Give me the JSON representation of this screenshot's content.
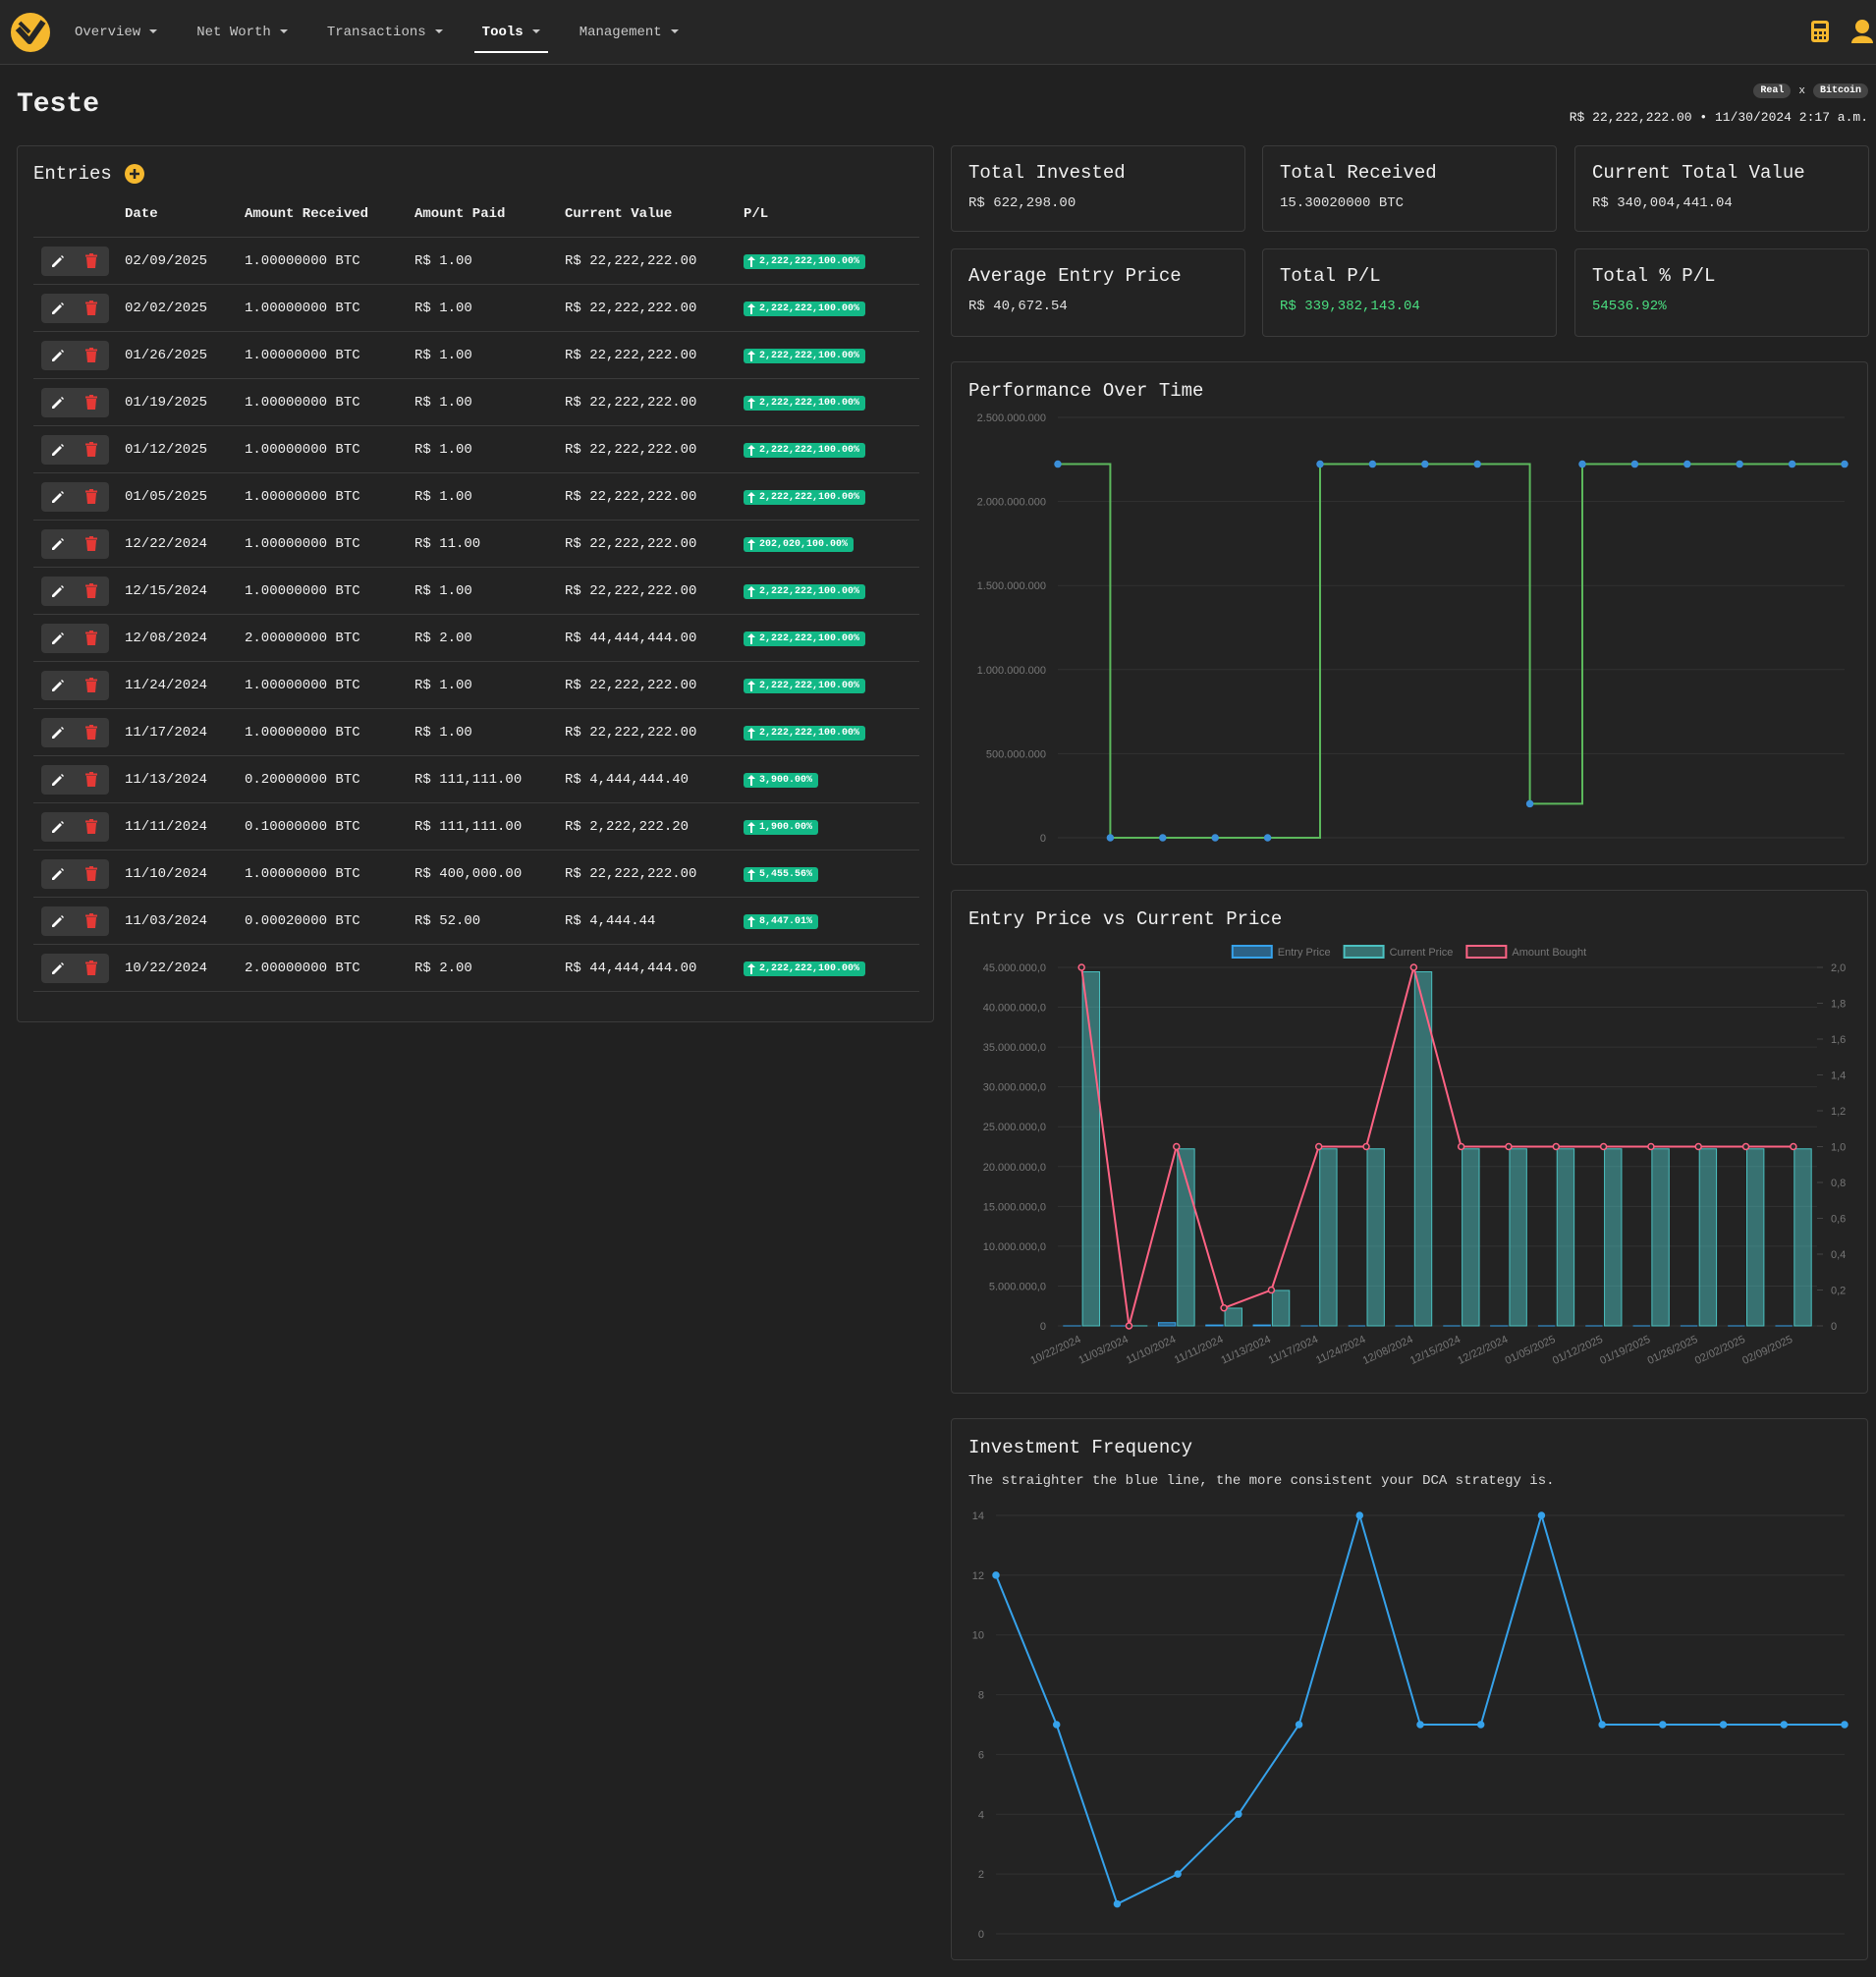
{
  "nav": {
    "items": [
      "Overview",
      "Net Worth",
      "Transactions",
      "Tools",
      "Management"
    ],
    "active": 3
  },
  "header": {
    "title": "Teste",
    "base": "Real",
    "sep": "x",
    "quote": "Bitcoin",
    "price": "R$ 22,222,222.00 • 11/30/2024 2:17 a.m."
  },
  "entries": {
    "title": "Entries",
    "columns": [
      "Date",
      "Amount Received",
      "Amount Paid",
      "Current Value",
      "P/L"
    ],
    "rows": [
      [
        "02/09/2025",
        "1.00000000 BTC",
        "R$ 1.00",
        "R$ 22,222,222.00",
        "2,222,222,100.00%"
      ],
      [
        "02/02/2025",
        "1.00000000 BTC",
        "R$ 1.00",
        "R$ 22,222,222.00",
        "2,222,222,100.00%"
      ],
      [
        "01/26/2025",
        "1.00000000 BTC",
        "R$ 1.00",
        "R$ 22,222,222.00",
        "2,222,222,100.00%"
      ],
      [
        "01/19/2025",
        "1.00000000 BTC",
        "R$ 1.00",
        "R$ 22,222,222.00",
        "2,222,222,100.00%"
      ],
      [
        "01/12/2025",
        "1.00000000 BTC",
        "R$ 1.00",
        "R$ 22,222,222.00",
        "2,222,222,100.00%"
      ],
      [
        "01/05/2025",
        "1.00000000 BTC",
        "R$ 1.00",
        "R$ 22,222,222.00",
        "2,222,222,100.00%"
      ],
      [
        "12/22/2024",
        "1.00000000 BTC",
        "R$ 11.00",
        "R$ 22,222,222.00",
        "202,020,100.00%"
      ],
      [
        "12/15/2024",
        "1.00000000 BTC",
        "R$ 1.00",
        "R$ 22,222,222.00",
        "2,222,222,100.00%"
      ],
      [
        "12/08/2024",
        "2.00000000 BTC",
        "R$ 2.00",
        "R$ 44,444,444.00",
        "2,222,222,100.00%"
      ],
      [
        "11/24/2024",
        "1.00000000 BTC",
        "R$ 1.00",
        "R$ 22,222,222.00",
        "2,222,222,100.00%"
      ],
      [
        "11/17/2024",
        "1.00000000 BTC",
        "R$ 1.00",
        "R$ 22,222,222.00",
        "2,222,222,100.00%"
      ],
      [
        "11/13/2024",
        "0.20000000 BTC",
        "R$ 111,111.00",
        "R$ 4,444,444.40",
        "3,900.00%"
      ],
      [
        "11/11/2024",
        "0.10000000 BTC",
        "R$ 111,111.00",
        "R$ 2,222,222.20",
        "1,900.00%"
      ],
      [
        "11/10/2024",
        "1.00000000 BTC",
        "R$ 400,000.00",
        "R$ 22,222,222.00",
        "5,455.56%"
      ],
      [
        "11/03/2024",
        "0.00020000 BTC",
        "R$ 52.00",
        "R$ 4,444.44",
        "8,447.01%"
      ],
      [
        "10/22/2024",
        "2.00000000 BTC",
        "R$ 2.00",
        "R$ 44,444,444.00",
        "2,222,222,100.00%"
      ]
    ]
  },
  "stats": [
    {
      "label": "Total Invested",
      "value": "R$ 622,298.00"
    },
    {
      "label": "Total Received",
      "value": "15.30020000 BTC"
    },
    {
      "label": "Current Total Value",
      "value": "R$ 340,004,441.04"
    },
    {
      "label": "Average Entry Price",
      "value": "R$ 40,672.54"
    },
    {
      "label": "Total P/L",
      "value": "R$ 339,382,143.04",
      "color": "#4ade80"
    },
    {
      "label": "Total % P/L",
      "value": "54536.92%",
      "color": "#4ade80"
    }
  ],
  "chart_data": [
    {
      "type": "line",
      "title": "Performance Over Time",
      "stepped": true,
      "grid": true,
      "categories": [
        null,
        null,
        null,
        null,
        null,
        null,
        null,
        null,
        null,
        null,
        null,
        null,
        null,
        null,
        null,
        null
      ],
      "series": [
        {
          "color": "#5cb85c",
          "point_color": "#3b8fd9",
          "values": [
            2222222100,
            8447.01,
            5455.56,
            1900,
            3900,
            2222222100,
            2222222100,
            2222222100,
            2222222100,
            202020100,
            2222222100,
            2222222100,
            2222222100,
            2222222100,
            2222222100,
            2222222100
          ]
        }
      ],
      "ylim": [
        0,
        2500000000
      ],
      "yticks": [
        0,
        {
          "value": 500000000,
          "label": "500.000.000"
        },
        {
          "value": 1000000000,
          "label": "1.000.000.000"
        },
        {
          "value": 1500000000,
          "label": "1.500.000.000"
        },
        {
          "value": 2000000000,
          "label": "2.000.000.000"
        },
        {
          "value": 2500000000,
          "label": "2.500.000.000"
        }
      ]
    },
    {
      "type": "bar",
      "title": "Entry Price vs Current Price",
      "grid": true,
      "categories": [
        "10/22/2024",
        "11/03/2024",
        "11/10/2024",
        "11/11/2024",
        "11/13/2024",
        "11/17/2024",
        "11/24/2024",
        "12/08/2024",
        "12/15/2024",
        "12/22/2024",
        "01/05/2025",
        "01/12/2025",
        "01/19/2025",
        "01/26/2025",
        "02/02/2025",
        "02/09/2025"
      ],
      "series": [
        {
          "name": "Entry Price",
          "color": "#36a2eb",
          "values": [
            2,
            52,
            400000,
            111111,
            111111,
            1,
            1,
            2,
            1,
            11,
            1,
            1,
            1,
            1,
            1,
            1
          ]
        },
        {
          "name": "Current Price",
          "color": "#4bc0c0",
          "values": [
            44444444,
            4444.44,
            22222222,
            2222222.2,
            4444444.4,
            22222222,
            22222222,
            44444444,
            22222222,
            22222222,
            22222222,
            22222222,
            22222222,
            22222222,
            22222222,
            22222222
          ]
        },
        {
          "name": "Amount Bought",
          "type": "line",
          "axis": "y2",
          "color": "#ff6384",
          "point_color": "#2a2a2a",
          "values": [
            2,
            0.0002,
            1,
            0.1,
            0.2,
            1,
            1,
            2,
            1,
            1,
            1,
            1,
            1,
            1,
            1,
            1
          ]
        }
      ],
      "ylim": [
        0,
        45000000
      ],
      "yticks": [
        0,
        {
          "value": 5000000,
          "label": "5.000.000,0"
        },
        {
          "value": 10000000,
          "label": "10.000.000,0"
        },
        {
          "value": 15000000,
          "label": "15.000.000,0"
        },
        {
          "value": 20000000,
          "label": "20.000.000,0"
        },
        {
          "value": 25000000,
          "label": "25.000.000,0"
        },
        {
          "value": 30000000,
          "label": "30.000.000,0"
        },
        {
          "value": 35000000,
          "label": "35.000.000,0"
        },
        {
          "value": 40000000,
          "label": "40.000.000,0"
        },
        {
          "value": 45000000,
          "label": "45.000.000,0"
        }
      ],
      "y2lim": [
        0,
        2
      ],
      "y2ticks": [
        0,
        {
          "value": 0.2,
          "label": "0,2"
        },
        {
          "value": 0.4,
          "label": "0,4"
        },
        {
          "value": 0.6,
          "label": "0,6"
        },
        {
          "value": 0.8,
          "label": "0,8"
        },
        {
          "value": 1,
          "label": "1,0"
        },
        {
          "value": 1.2,
          "label": "1,2"
        },
        {
          "value": 1.4,
          "label": "1,4"
        },
        {
          "value": 1.6,
          "label": "1,6"
        },
        {
          "value": 1.8,
          "label": "1,8"
        },
        {
          "value": 2,
          "label": "2,0"
        }
      ]
    },
    {
      "type": "line",
      "title": "Investment Frequency",
      "subtitle": "The straighter the blue line, the more consistent your DCA strategy is.",
      "grid": true,
      "categories": [
        null,
        null,
        null,
        null,
        null,
        null,
        null,
        null,
        null,
        null,
        null,
        null,
        null,
        null,
        null
      ],
      "series": [
        {
          "color": "#36a2eb",
          "values": [
            12,
            7,
            1,
            2,
            4,
            7,
            14,
            7,
            7,
            14,
            7,
            7,
            7,
            7,
            7
          ]
        }
      ],
      "ylim": [
        0,
        14
      ],
      "yticks": [
        0,
        2,
        4,
        6,
        8,
        10,
        12,
        14
      ]
    }
  ]
}
